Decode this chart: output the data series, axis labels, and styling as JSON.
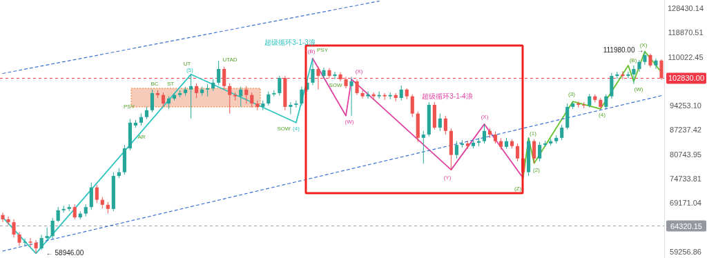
{
  "chart_data": {
    "type": "candlestick",
    "log": true,
    "ylim": [
      58100,
      131850
    ],
    "yticks": [
      59256.86,
      69171.04,
      74733.81,
      80743.95,
      87237.42,
      {
        "value": 94253.1,
        "label": "94253.10"
      },
      110022.45,
      118870.51,
      128430.14
    ],
    "categories": [
      null,
      null,
      null,
      null,
      null,
      null,
      null,
      null,
      null,
      null,
      null,
      null,
      null,
      null,
      null,
      null,
      null,
      null,
      null,
      null,
      null,
      null,
      null,
      null,
      null,
      null,
      null,
      null,
      null,
      null,
      null,
      null,
      null,
      null,
      null,
      null,
      null,
      null,
      null,
      null,
      null,
      null,
      null,
      null,
      null,
      null,
      null,
      null,
      null,
      null,
      null,
      null,
      null,
      null,
      null,
      null,
      null,
      null,
      null,
      null,
      null,
      null,
      null,
      null,
      null,
      null,
      null,
      null,
      null,
      null,
      null,
      null,
      null,
      null,
      null,
      null,
      null,
      null,
      null,
      null,
      null,
      null,
      null,
      null,
      null,
      null,
      null,
      null,
      null,
      null,
      null,
      null,
      null,
      null,
      null,
      null,
      null,
      null,
      null,
      null,
      null,
      null,
      null,
      null,
      null,
      null,
      null,
      null,
      null,
      null,
      null,
      null,
      null,
      null,
      null,
      null,
      null,
      null,
      null,
      null
    ],
    "ohlc": [
      [
        66600,
        67100,
        65100,
        65700
      ],
      [
        65700,
        66300,
        64500,
        65100
      ],
      [
        65100,
        65700,
        62000,
        62600
      ],
      [
        62600,
        63100,
        60400,
        61000
      ],
      [
        61000,
        61800,
        60400,
        61200
      ],
      [
        61200,
        61900,
        60200,
        61000
      ],
      [
        61000,
        61500,
        58946,
        59900
      ],
      [
        59900,
        62500,
        59600,
        61900
      ],
      [
        61900,
        64000,
        61500,
        62300
      ],
      [
        62300,
        66000,
        61800,
        65400
      ],
      [
        65400,
        68300,
        65100,
        67600
      ],
      [
        67600,
        68600,
        67100,
        67900
      ],
      [
        67900,
        68900,
        67400,
        68300
      ],
      [
        68300,
        68900,
        65700,
        66100
      ],
      [
        66100,
        67400,
        65700,
        66900
      ],
      [
        66900,
        68900,
        66300,
        68300
      ],
      [
        68300,
        73800,
        67700,
        72700
      ],
      [
        72700,
        73300,
        69200,
        69900
      ],
      [
        69900,
        70500,
        68000,
        68800
      ],
      [
        68800,
        69400,
        66900,
        67900
      ],
      [
        67900,
        76300,
        67400,
        75400
      ],
      [
        75400,
        77300,
        74900,
        76300
      ],
      [
        76300,
        83200,
        75700,
        82300
      ],
      [
        82300,
        90300,
        81800,
        89300
      ],
      [
        88500,
        90100,
        87900,
        89300
      ],
      [
        89300,
        91900,
        88500,
        90900
      ],
      [
        90900,
        93900,
        90300,
        92900
      ],
      [
        92900,
        99200,
        92300,
        98100
      ],
      [
        98100,
        99000,
        96600,
        97500
      ],
      [
        97500,
        98300,
        93900,
        94900
      ],
      [
        94900,
        97100,
        93300,
        96400
      ],
      [
        96400,
        98100,
        95800,
        97500
      ],
      [
        97500,
        99000,
        96800,
        98100
      ],
      [
        98100,
        100100,
        97300,
        99200
      ],
      [
        99200,
        104100,
        90500,
        100300
      ],
      [
        100300,
        101200,
        96600,
        98100
      ],
      [
        98100,
        100100,
        97300,
        99200
      ],
      [
        99200,
        100900,
        97100,
        99600
      ],
      [
        99600,
        102500,
        98800,
        101400
      ],
      [
        101400,
        108700,
        100600,
        105900
      ],
      [
        105900,
        106600,
        99200,
        100300
      ],
      [
        100300,
        101200,
        91900,
        97500
      ],
      [
        97500,
        98300,
        95800,
        97100
      ],
      [
        97100,
        100100,
        93900,
        99200
      ],
      [
        99200,
        100300,
        94900,
        97500
      ],
      [
        97500,
        98300,
        93700,
        94900
      ],
      [
        94900,
        95800,
        92900,
        93900
      ],
      [
        93900,
        95800,
        92900,
        94900
      ],
      [
        94900,
        98600,
        94300,
        97700
      ],
      [
        97700,
        99000,
        97100,
        98100
      ],
      [
        98100,
        103600,
        97300,
        102900
      ],
      [
        102900,
        103600,
        92900,
        93900
      ],
      [
        93900,
        95300,
        91700,
        94500
      ],
      [
        94500,
        95800,
        93700,
        94900
      ],
      [
        94900,
        100100,
        94300,
        99200
      ],
      [
        99200,
        102500,
        98600,
        101400
      ],
      [
        101400,
        109500,
        100600,
        105900
      ],
      [
        105900,
        106700,
        99200,
        103600
      ],
      [
        103600,
        106400,
        102800,
        105500
      ],
      [
        105500,
        106200,
        102800,
        103600
      ],
      [
        103600,
        105000,
        102500,
        104100
      ],
      [
        104100,
        104800,
        101800,
        102500
      ],
      [
        102500,
        103300,
        99600,
        100300
      ],
      [
        100300,
        103300,
        91300,
        101800
      ],
      [
        101800,
        102500,
        97500,
        98100
      ],
      [
        98100,
        99000,
        96400,
        97100
      ],
      [
        97100,
        98600,
        96400,
        97700
      ],
      [
        97700,
        98300,
        96200,
        97100
      ],
      [
        97100,
        98600,
        96400,
        97500
      ],
      [
        97500,
        98100,
        96000,
        97100
      ],
      [
        97100,
        98300,
        96200,
        97500
      ],
      [
        97500,
        98100,
        95600,
        96600
      ],
      [
        96600,
        100500,
        95800,
        99200
      ],
      [
        99200,
        99600,
        96200,
        97100
      ],
      [
        97100,
        97700,
        90900,
        91900
      ],
      [
        91900,
        92500,
        84000,
        85100
      ],
      [
        85100,
        87000,
        78400,
        86000
      ],
      [
        86000,
        95300,
        85500,
        94500
      ],
      [
        94500,
        95300,
        87400,
        87900
      ],
      [
        87900,
        91900,
        87000,
        90500
      ],
      [
        90500,
        91300,
        86000,
        87000
      ],
      [
        87000,
        87700,
        76900,
        80600
      ],
      [
        80600,
        84200,
        79700,
        83200
      ],
      [
        83200,
        84500,
        82500,
        83600
      ],
      [
        83600,
        84300,
        82200,
        82900
      ],
      [
        82900,
        84500,
        82300,
        83800
      ],
      [
        83800,
        85100,
        82900,
        84200
      ],
      [
        84200,
        88900,
        83600,
        87000
      ],
      [
        87000,
        87700,
        85100,
        86000
      ],
      [
        86000,
        86800,
        83600,
        84200
      ],
      [
        84200,
        85000,
        82000,
        82700
      ],
      [
        82700,
        85100,
        82200,
        84200
      ],
      [
        84200,
        84700,
        82300,
        82900
      ],
      [
        82900,
        83600,
        79000,
        79700
      ],
      [
        79700,
        80400,
        74900,
        76300
      ],
      [
        76300,
        85100,
        75400,
        84200
      ],
      [
        84200,
        84700,
        78500,
        79700
      ],
      [
        79700,
        84000,
        79000,
        83200
      ],
      [
        83200,
        84300,
        82700,
        83600
      ],
      [
        83600,
        84900,
        83100,
        84200
      ],
      [
        84200,
        85800,
        83600,
        85100
      ],
      [
        85100,
        88700,
        84500,
        87900
      ],
      [
        87900,
        94900,
        87400,
        93900
      ],
      [
        93900,
        95500,
        93300,
        94900
      ],
      [
        94900,
        95500,
        93700,
        94500
      ],
      [
        94500,
        95300,
        93500,
        94300
      ],
      [
        94300,
        97900,
        93700,
        97100
      ],
      [
        97100,
        97700,
        95200,
        96000
      ],
      [
        96000,
        96600,
        93300,
        93900
      ],
      [
        93900,
        97700,
        93300,
        97100
      ],
      [
        97100,
        104600,
        96400,
        103600
      ],
      [
        103600,
        105000,
        102700,
        104100
      ],
      [
        104100,
        105200,
        102500,
        103600
      ],
      [
        103600,
        105000,
        102800,
        104100
      ],
      [
        104100,
        107100,
        101000,
        105900
      ],
      [
        105900,
        109000,
        105000,
        108300
      ],
      [
        108300,
        111980,
        107300,
        110700
      ],
      [
        110700,
        111200,
        106400,
        107100
      ],
      [
        107100,
        109500,
        105900,
        108800
      ],
      [
        108800,
        109200,
        102300,
        102830
      ]
    ],
    "series": [
      {
        "type": "line",
        "color": "#2ec4c0",
        "line_style": "solid",
        "values": [
          66100,
          null,
          null,
          null,
          null,
          null,
          58946,
          null,
          null,
          null,
          null,
          null,
          null,
          null,
          null,
          null,
          null,
          null,
          null,
          null,
          null,
          null,
          null,
          null,
          null,
          null,
          null,
          null,
          null,
          null,
          null,
          null,
          null,
          null,
          104100,
          null,
          null,
          null,
          null,
          null,
          null,
          null,
          null,
          null,
          null,
          null,
          null,
          null,
          null,
          null,
          null,
          null,
          null,
          89300,
          null,
          null,
          109500,
          null,
          null,
          null,
          null,
          null,
          null,
          null,
          null,
          null,
          null,
          null,
          null,
          null,
          null,
          null,
          null,
          null,
          null,
          null,
          null,
          null,
          null,
          null,
          null,
          null,
          null,
          null,
          null,
          null,
          null,
          null,
          null,
          null,
          null,
          null,
          null,
          null,
          null,
          null,
          null,
          null,
          null,
          null,
          null,
          null,
          null,
          null,
          null,
          null,
          null,
          null,
          null,
          null,
          null,
          null,
          null,
          null,
          null,
          null,
          null,
          null,
          null,
          null
        ]
      },
      {
        "type": "line",
        "color": "#e040a0",
        "line_style": "solid",
        "values": [
          null,
          null,
          null,
          null,
          null,
          null,
          null,
          null,
          null,
          null,
          null,
          null,
          null,
          null,
          null,
          null,
          null,
          null,
          null,
          null,
          null,
          null,
          null,
          null,
          null,
          null,
          null,
          null,
          null,
          null,
          null,
          null,
          null,
          null,
          null,
          null,
          null,
          null,
          null,
          null,
          null,
          null,
          null,
          null,
          null,
          null,
          null,
          null,
          null,
          null,
          null,
          null,
          null,
          null,
          null,
          null,
          109500,
          null,
          null,
          null,
          null,
          null,
          91300,
          102500,
          null,
          null,
          null,
          null,
          null,
          null,
          null,
          null,
          null,
          null,
          null,
          null,
          null,
          null,
          null,
          null,
          null,
          76900,
          null,
          null,
          null,
          null,
          null,
          88900,
          null,
          null,
          null,
          null,
          null,
          null,
          74900,
          null,
          null,
          null,
          null,
          null,
          null,
          null,
          null,
          null,
          null,
          null,
          null,
          null,
          null,
          null,
          null,
          null,
          null,
          null,
          null,
          null,
          null,
          null,
          null,
          null
        ]
      },
      {
        "type": "line",
        "color": "#66c22a",
        "line_style": "solid",
        "values": [
          null,
          null,
          null,
          null,
          null,
          null,
          null,
          null,
          null,
          null,
          null,
          null,
          null,
          null,
          null,
          null,
          null,
          null,
          null,
          null,
          null,
          null,
          null,
          null,
          null,
          null,
          null,
          null,
          null,
          null,
          null,
          null,
          null,
          null,
          null,
          null,
          null,
          null,
          null,
          null,
          null,
          null,
          null,
          null,
          null,
          null,
          null,
          null,
          null,
          null,
          null,
          null,
          null,
          null,
          null,
          null,
          null,
          null,
          null,
          null,
          null,
          null,
          null,
          null,
          null,
          null,
          null,
          null,
          null,
          null,
          null,
          null,
          null,
          null,
          null,
          null,
          null,
          null,
          null,
          null,
          null,
          null,
          null,
          null,
          null,
          null,
          null,
          null,
          null,
          null,
          null,
          null,
          null,
          null,
          74900,
          85100,
          78500,
          null,
          null,
          null,
          null,
          null,
          null,
          95500,
          null,
          null,
          null,
          null,
          93300,
          null,
          null,
          null,
          null,
          107100,
          101800,
          null,
          111980,
          null,
          null,
          104800
        ]
      },
      {
        "type": "line",
        "color": "#3b6fd4",
        "line_style": "dashed",
        "values": [
          104400,
          null,
          null,
          null,
          null,
          null,
          null,
          null,
          null,
          null,
          null,
          null,
          null,
          null,
          null,
          null,
          null,
          null,
          null,
          null,
          null,
          null,
          null,
          null,
          null,
          null,
          null,
          null,
          null,
          null,
          null,
          null,
          null,
          null,
          null,
          null,
          null,
          null,
          null,
          null,
          null,
          null,
          null,
          null,
          null,
          null,
          null,
          null,
          null,
          null,
          null,
          null,
          null,
          null,
          null,
          null,
          null,
          null,
          null,
          null,
          null,
          null,
          null,
          null,
          null,
          null,
          null,
          null,
          131400,
          null,
          null,
          null,
          null,
          null,
          null,
          null,
          null,
          null,
          null,
          null,
          null,
          null,
          null,
          null,
          null,
          null,
          null,
          null,
          null,
          null,
          null,
          null,
          null,
          null,
          null,
          null,
          null,
          null,
          null,
          null,
          null,
          null,
          null,
          null,
          null,
          null,
          null,
          null,
          null,
          null,
          null,
          null,
          null,
          null,
          null,
          null,
          null,
          null,
          null,
          null
        ]
      },
      {
        "type": "line",
        "color": "#3b6fd4",
        "line_style": "dashed",
        "values": [
          59400,
          null,
          null,
          null,
          null,
          null,
          null,
          null,
          null,
          null,
          null,
          null,
          null,
          null,
          null,
          null,
          null,
          null,
          null,
          null,
          null,
          null,
          null,
          null,
          null,
          null,
          null,
          null,
          null,
          null,
          null,
          null,
          null,
          null,
          null,
          null,
          null,
          null,
          null,
          null,
          null,
          null,
          null,
          null,
          null,
          null,
          null,
          null,
          null,
          null,
          null,
          null,
          null,
          null,
          null,
          null,
          null,
          null,
          null,
          null,
          null,
          null,
          null,
          null,
          null,
          null,
          null,
          null,
          null,
          null,
          null,
          null,
          null,
          null,
          null,
          null,
          null,
          null,
          null,
          null,
          null,
          null,
          null,
          null,
          null,
          null,
          null,
          null,
          null,
          null,
          null,
          null,
          null,
          null,
          null,
          null,
          null,
          null,
          null,
          null,
          null,
          null,
          null,
          null,
          null,
          null,
          null,
          null,
          null,
          null,
          null,
          null,
          null,
          null,
          null,
          null,
          null,
          null,
          null,
          97300
        ]
      }
    ],
    "ref_lines": [
      {
        "axis": "y",
        "value": 102830,
        "label": "102830.00",
        "color": "#f23645",
        "line_style": "dashed"
      },
      {
        "axis": "y",
        "value": 64320.15,
        "label": "64320.15",
        "color": "#9598a1",
        "line_style": "dashed"
      }
    ],
    "annotations": [
      "(5)",
      "UT",
      "UTAD",
      "BC",
      "ST",
      "PSY",
      "AR",
      "SOW",
      "(4)",
      "超级循环3-1-3浪",
      "(B)",
      "PSY",
      "SOW",
      "(W)",
      "(X)",
      "超级循环3-1-4浪",
      "(Y)",
      "(X)",
      "(Z)",
      "(1)",
      "(2)",
      "(3)",
      "(4)",
      "(B)",
      "(W)",
      "(X)",
      "111980.00 →",
      "← 58946.00"
    ]
  }
}
